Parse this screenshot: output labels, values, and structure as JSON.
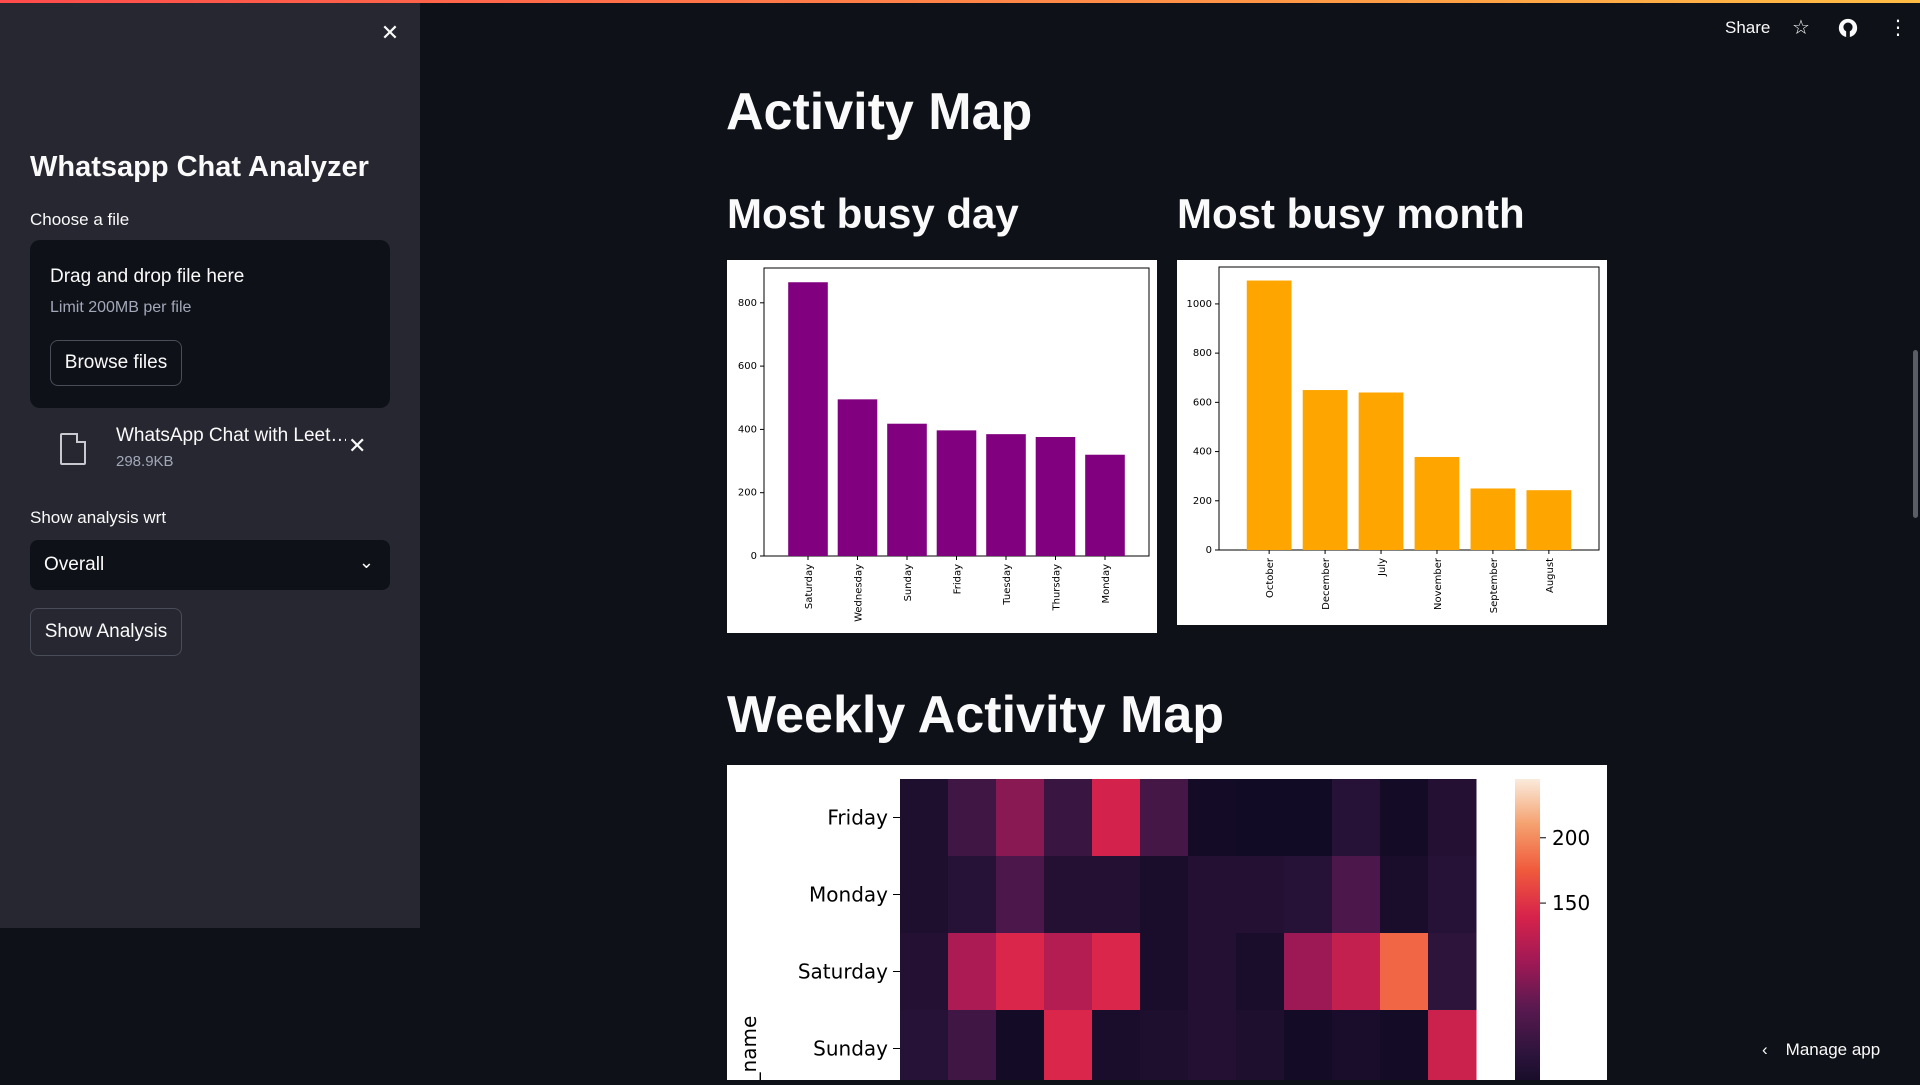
{
  "sidebar": {
    "title": "Whatsapp Chat Analyzer",
    "choose_label": "Choose a file",
    "drag_text": "Drag and drop file here",
    "limit_text": "Limit 200MB per file",
    "browse_label": "Browse files",
    "file_name": "WhatsApp Chat with Leet…",
    "file_size": "298.9KB",
    "analysis_label": "Show analysis wrt",
    "select_value": "Overall",
    "show_button": "Show Analysis"
  },
  "header": {
    "share_label": "Share"
  },
  "main": {
    "title": "Activity Map",
    "busy_day_title": "Most busy day",
    "busy_month_title": "Most busy month",
    "weekly_title": "Weekly Activity Map"
  },
  "footer": {
    "manage_label": "Manage app"
  },
  "colors": {
    "day_bar": "#800080",
    "month_bar": "#ffa500",
    "accent": "#ff4b4b"
  },
  "chart_data": [
    {
      "type": "bar",
      "categories": [
        "Saturday",
        "Wednesday",
        "Sunday",
        "Friday",
        "Tuesday",
        "Thursday",
        "Monday"
      ],
      "values": [
        865,
        495,
        418,
        397,
        385,
        376,
        320
      ],
      "ylim": [
        0,
        910
      ],
      "yticks": [
        0,
        200,
        400,
        600,
        800
      ]
    },
    {
      "type": "bar",
      "categories": [
        "October",
        "December",
        "July",
        "November",
        "September",
        "August"
      ],
      "values": [
        1095,
        650,
        640,
        378,
        250,
        243
      ],
      "ylim": [
        0,
        1150
      ],
      "yticks": [
        0,
        200,
        400,
        600,
        800,
        1000
      ]
    },
    {
      "type": "heatmap",
      "ylabel": "y_name",
      "rows": [
        "Friday",
        "Monday",
        "Saturday",
        "Sunday"
      ],
      "values": [
        [
          20,
          50,
          95,
          45,
          140,
          55,
          10,
          8,
          8,
          30,
          10,
          25
        ],
        [
          20,
          30,
          60,
          25,
          25,
          15,
          25,
          25,
          30,
          60,
          15,
          30
        ],
        [
          25,
          115,
          145,
          120,
          145,
          15,
          25,
          15,
          105,
          130,
          185,
          35
        ],
        [
          30,
          50,
          10,
          145,
          15,
          20,
          25,
          20,
          10,
          15,
          10,
          135
        ]
      ],
      "colorbar_ticks": [
        150,
        200
      ]
    }
  ]
}
